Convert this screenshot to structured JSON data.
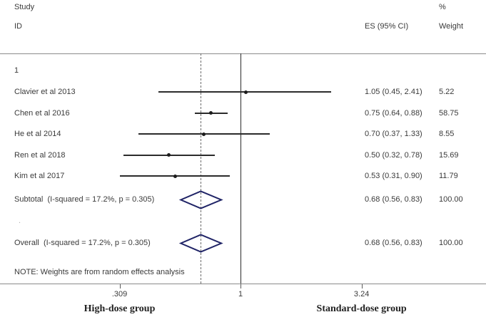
{
  "header": {
    "study": "Study",
    "id": "ID",
    "percent": "%",
    "es": "ES (95% CI)",
    "weight": "Weight"
  },
  "group_label": "1",
  "studies": [
    {
      "label": "Clavier et al 2013",
      "es_text": "1.05 (0.45, 2.41)",
      "weight_text": "5.22",
      "es": 1.05,
      "lo": 0.45,
      "hi": 2.41
    },
    {
      "label": "Chen et al 2016",
      "es_text": "0.75 (0.64, 0.88)",
      "weight_text": "58.75",
      "es": 0.75,
      "lo": 0.64,
      "hi": 0.88
    },
    {
      "label": "He et al 2014",
      "es_text": "0.70 (0.37, 1.33)",
      "weight_text": "8.55",
      "es": 0.7,
      "lo": 0.37,
      "hi": 1.33
    },
    {
      "label": "Ren et al 2018",
      "es_text": "0.50 (0.32, 0.78)",
      "weight_text": "15.69",
      "es": 0.5,
      "lo": 0.32,
      "hi": 0.78
    },
    {
      "label": "Kim et al 2017",
      "es_text": "0.53 (0.31, 0.90)",
      "weight_text": "11.79",
      "es": 0.53,
      "lo": 0.31,
      "hi": 0.9
    }
  ],
  "subtotal": {
    "label": "Subtotal  (I-squared = 17.2%, p = 0.305)",
    "es_text": "0.68 (0.56, 0.83)",
    "weight_text": "100.00",
    "es": 0.68,
    "lo": 0.56,
    "hi": 0.83
  },
  "separator": ".",
  "overall": {
    "label": "Overall  (I-squared = 17.2%, p = 0.305)",
    "es_text": "0.68 (0.56, 0.83)",
    "weight_text": "100.00",
    "es": 0.68,
    "lo": 0.56,
    "hi": 0.83
  },
  "note": "NOTE: Weights are from random effects analysis",
  "axis": {
    "scale": "log",
    "ticks": [
      {
        "label": ".309",
        "value": 0.309
      },
      {
        "label": "1",
        "value": 1
      },
      {
        "label": "3.24",
        "value": 3.24
      }
    ]
  },
  "footer": {
    "left_group": "High-dose group",
    "right_group": "Standard-dose group"
  },
  "colors": {
    "diamond": "#1f2366",
    "ci_line": "#2b2b2b",
    "rule": "#8b8b8b",
    "text": "#3a3a3a"
  },
  "chart_data": {
    "type": "scatter",
    "subtype": "forest-plot",
    "title": "",
    "xlabel_left": "High-dose group",
    "xlabel_right": "Standard-dose group",
    "x_axis": {
      "scale": "log",
      "ticks": [
        0.309,
        1,
        3.24
      ],
      "tick_labels": [
        ".309",
        "1",
        "3.24"
      ]
    },
    "null_line": 1,
    "overall_dashed_line": 0.68,
    "columns": [
      "Study ID",
      "ES (95% CI)",
      "% Weight"
    ],
    "group": "1",
    "studies": [
      {
        "id": "Clavier et al 2013",
        "es": 1.05,
        "ci": [
          0.45,
          2.41
        ],
        "weight": 5.22
      },
      {
        "id": "Chen et al 2016",
        "es": 0.75,
        "ci": [
          0.64,
          0.88
        ],
        "weight": 58.75
      },
      {
        "id": "He et al 2014",
        "es": 0.7,
        "ci": [
          0.37,
          1.33
        ],
        "weight": 8.55
      },
      {
        "id": "Ren et al 2018",
        "es": 0.5,
        "ci": [
          0.32,
          0.78
        ],
        "weight": 15.69
      },
      {
        "id": "Kim et al 2017",
        "es": 0.53,
        "ci": [
          0.31,
          0.9
        ],
        "weight": 11.79
      }
    ],
    "subtotal": {
      "label": "Subtotal",
      "i_squared": "17.2%",
      "p": 0.305,
      "es": 0.68,
      "ci": [
        0.56,
        0.83
      ],
      "weight": 100.0
    },
    "overall": {
      "label": "Overall",
      "i_squared": "17.2%",
      "p": 0.305,
      "es": 0.68,
      "ci": [
        0.56,
        0.83
      ],
      "weight": 100.0
    },
    "note": "NOTE: Weights are from random effects analysis"
  }
}
